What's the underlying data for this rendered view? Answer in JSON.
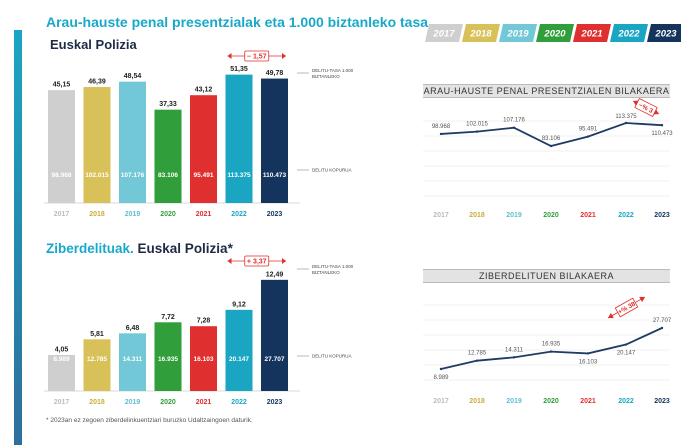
{
  "titles": {
    "main_1": "Arau-hauste penal presentzialak eta 1.000 biztanleko tasa.",
    "sub_1": "Euskal Polizia",
    "main_2_a": "Ziberdelituak.",
    "main_2_b": " Euskal Polizia*",
    "footnote": "* 2023an ez zegoen ziberdelinkuentziari buruzko Udaltzaingoen daturik.",
    "panel_1": "ARAU-HAUSTE PENAL PRESENTZIALEN BILAKAERA",
    "panel_2": "ZIBERDELITUEN BILAKAERA"
  },
  "years": [
    "2017",
    "2018",
    "2019",
    "2020",
    "2021",
    "2022",
    "2023"
  ],
  "year_colors": [
    "#cfcfcf",
    "#d9c15a",
    "#72c8d6",
    "#2f9e3b",
    "#e02f2f",
    "#1aa6c2",
    "#14345e"
  ],
  "year_label_colors": [
    "#bdbdbd",
    "#c9ad3c",
    "#5fbfd0",
    "#2f9e3b",
    "#e02f2f",
    "#1aa6c2",
    "#14345e"
  ],
  "chart_data": [
    {
      "type": "bar",
      "categories": [
        "2017",
        "2018",
        "2019",
        "2020",
        "2021",
        "2022",
        "2023"
      ],
      "series": [
        {
          "name": "DELITU-TASA 1.000 BIZTANLEKO",
          "values": [
            45.15,
            46.39,
            48.54,
            37.33,
            43.12,
            51.35,
            49.78
          ]
        },
        {
          "name": "DELITU KOPURUA",
          "values": [
            98968,
            102015,
            107176,
            83106,
            95491,
            113375,
            110473
          ]
        }
      ],
      "rate_labels": [
        "45,15",
        "46,39",
        "48,54",
        "37,33",
        "43,12",
        "51,35",
        "49,78"
      ],
      "count_labels": [
        "98.968",
        "102.015",
        "107.176",
        "83.106",
        "95.491",
        "113.375",
        "110.473"
      ],
      "annotation": "− 1,57",
      "legend_rate": [
        "DELITU-TASA 1.000",
        "BIZTANLEKO"
      ],
      "legend_count": "DELITU KOPURUA"
    },
    {
      "type": "bar",
      "categories": [
        "2017",
        "2018",
        "2019",
        "2020",
        "2021",
        "2022",
        "2023"
      ],
      "series": [
        {
          "name": "DELITU-TASA 1.000 BIZTANLEKO",
          "values": [
            4.05,
            5.81,
            6.48,
            7.72,
            7.28,
            9.12,
            12.49
          ]
        },
        {
          "name": "DELITU KOPURUA",
          "values": [
            8989,
            12785,
            14311,
            16935,
            16103,
            20147,
            27707
          ]
        }
      ],
      "rate_labels": [
        "4,05",
        "5,81",
        "6,48",
        "7,72",
        "7,28",
        "9,12",
        "12,49"
      ],
      "count_labels": [
        "8.989",
        "12.785",
        "14.311",
        "16.935",
        "16.103",
        "20.147",
        "27.707"
      ],
      "annotation": "+ 3,37",
      "legend_rate": [
        "DELITU-TASA 1.000",
        "BIZTANLEKO"
      ],
      "legend_count": "DELITU KOPURUA"
    },
    {
      "type": "line",
      "x": [
        "2017",
        "2018",
        "2019",
        "2020",
        "2021",
        "2022",
        "2023"
      ],
      "values": [
        98968,
        102015,
        107176,
        83106,
        95491,
        113375,
        110473
      ],
      "labels": [
        "98.968",
        "102.015",
        "107.176",
        "83.106",
        "95.491",
        "113.375",
        "110.473"
      ],
      "annotation": "−% 3",
      "title": "ARAU-HAUSTE PENAL PRESENTZIALEN BILAKAERA"
    },
    {
      "type": "line",
      "x": [
        "2017",
        "2018",
        "2019",
        "2020",
        "2021",
        "2022",
        "2023"
      ],
      "values": [
        8989,
        12785,
        14311,
        16935,
        16103,
        20147,
        27707
      ],
      "labels": [
        "8.989",
        "12.785",
        "14.311",
        "16.935",
        "16.103",
        "20.147",
        "27.707"
      ],
      "annotation": "+% 38",
      "title": "ZIBERDELITUEN BILAKAERA"
    }
  ]
}
